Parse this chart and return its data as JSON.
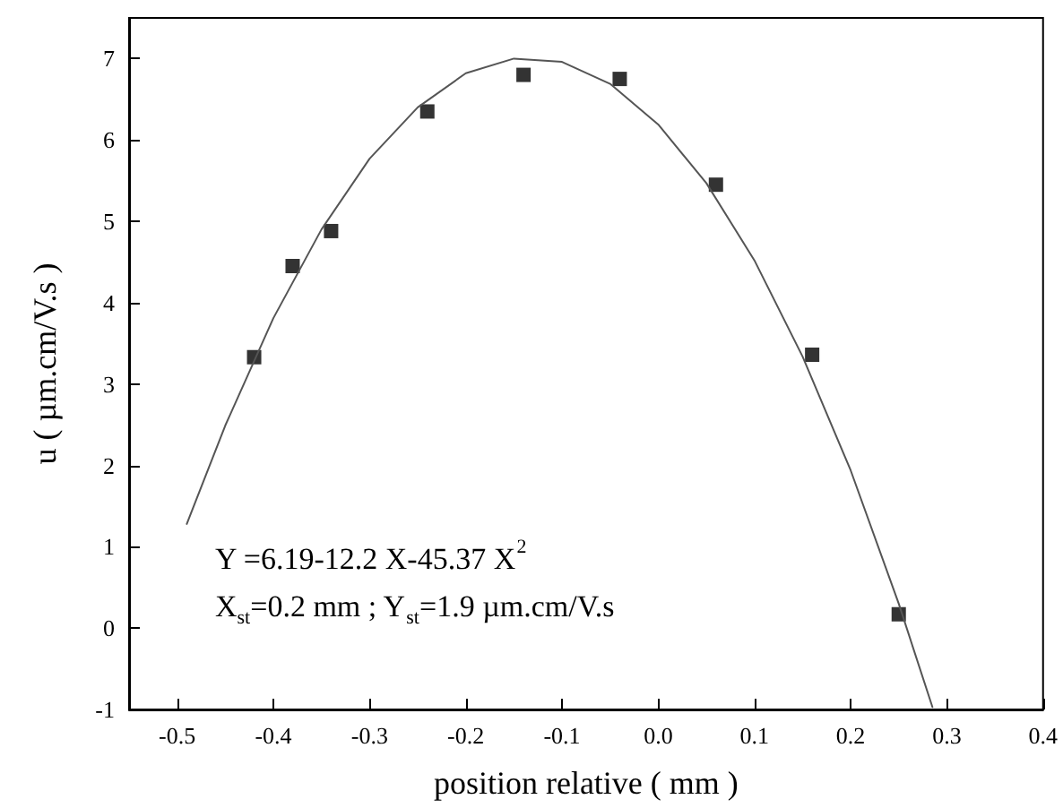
{
  "chart_data": {
    "type": "scatter",
    "xlabel": "position relative ( mm )",
    "ylabel": "u ( µm.cm/V.s )",
    "x": [
      -0.42,
      -0.38,
      -0.34,
      -0.24,
      -0.14,
      -0.04,
      0.06,
      0.16,
      0.25
    ],
    "series": [
      {
        "color": "#000000",
        "marker": "square",
        "values": [
          3.33,
          4.45,
          4.88,
          6.35,
          6.8,
          6.75,
          5.45,
          3.36,
          0.17
        ]
      },
      {
        "type": "line",
        "color": "#555555",
        "marker": "none",
        "line_style": "solid",
        "x": [
          -0.49,
          -0.45,
          -0.4,
          -0.35,
          -0.3,
          -0.25,
          -0.2,
          -0.15,
          -0.1,
          -0.05,
          0,
          0.05,
          0.1,
          0.15,
          0.2,
          0.25,
          0.285
        ],
        "values": [
          1.28,
          2.49,
          3.81,
          4.9,
          5.77,
          6.4,
          6.82,
          7.0,
          6.96,
          6.69,
          6.19,
          5.47,
          4.52,
          3.34,
          1.94,
          0.3,
          -0.97
        ]
      }
    ],
    "xlim": [
      -0.55,
      0.4
    ],
    "xticks": [
      -0.5,
      -0.4,
      -0.3,
      -0.2,
      -0.1,
      {
        "value": 0,
        "label": "0.0"
      },
      0.1,
      0.2,
      0.3,
      0.4
    ],
    "ylim": [
      -1,
      7.5
    ],
    "yticks": [
      -1,
      0,
      1,
      2,
      3,
      4,
      5,
      6,
      7
    ],
    "grid": false,
    "annotations": [
      "Y =6.19-12.2 X-45.37 X$^{2}$",
      "X$_{st}$=0.2 mm ; Y$_{st}$=1.9 µm.cm/V.s"
    ]
  }
}
